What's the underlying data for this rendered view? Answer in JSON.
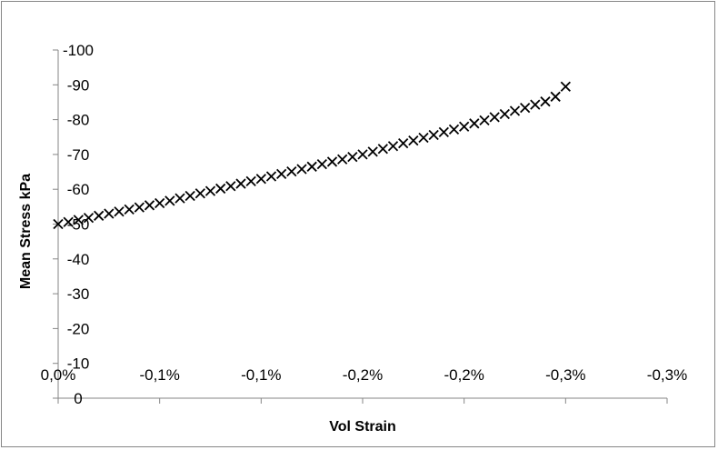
{
  "chart_data": {
    "type": "scatter",
    "title": "",
    "xlabel": "Vol Strain",
    "ylabel": "Mean Stress kPa",
    "x_tick_labels": [
      "0,0%",
      "-0,1%",
      "-0,1%",
      "-0,2%",
      "-0,2%",
      "-0,3%",
      "-0,3%"
    ],
    "y_tick_labels": [
      "0",
      "-10",
      "-20",
      "-30",
      "-40",
      "-50",
      "-60",
      "-70",
      "-80",
      "-90",
      "-100"
    ],
    "xlim": [
      0,
      -0.003
    ],
    "ylim": [
      0,
      -100
    ],
    "x_reversed": true,
    "y_reversed": true,
    "grid": false,
    "legend": "none",
    "marker": "x",
    "marker_color": "#000000",
    "series": [
      {
        "x": [
          0,
          -5e-05,
          -0.0001,
          -0.00015,
          -0.0002,
          -0.00025,
          -0.0003,
          -0.00035,
          -0.0004,
          -0.00045,
          -0.0005,
          -0.00055,
          -0.0006,
          -0.00065,
          -0.0007,
          -0.00075,
          -0.0008,
          -0.00085,
          -0.0009,
          -0.00095,
          -0.001,
          -0.00105,
          -0.0011,
          -0.00115,
          -0.0012,
          -0.00125,
          -0.0013,
          -0.00135,
          -0.0014,
          -0.00145,
          -0.0015,
          -0.00155,
          -0.0016,
          -0.00165,
          -0.0017,
          -0.00175,
          -0.0018,
          -0.00185,
          -0.0019,
          -0.00195,
          -0.002,
          -0.00205,
          -0.0021,
          -0.00215,
          -0.0022,
          -0.00225,
          -0.0023,
          -0.00235,
          -0.0024,
          -0.00245,
          -0.0025
        ],
        "y": [
          -50,
          -50.6,
          -51.2,
          -51.8,
          -52.4,
          -53,
          -53.6,
          -54.2,
          -54.8,
          -55.4,
          -56,
          -56.7,
          -57.4,
          -58.1,
          -58.8,
          -59.5,
          -60.2,
          -60.9,
          -61.6,
          -62.3,
          -63,
          -63.7,
          -64.4,
          -65.1,
          -65.8,
          -66.5,
          -67.2,
          -67.9,
          -68.6,
          -69.3,
          -70,
          -70.8,
          -71.6,
          -72.4,
          -73.2,
          -74,
          -74.8,
          -75.6,
          -76.4,
          -77.2,
          -78,
          -78.9,
          -79.8,
          -80.7,
          -81.6,
          -82.5,
          -83.4,
          -84.3,
          -85.2,
          -86.6,
          -89.5
        ]
      }
    ]
  }
}
